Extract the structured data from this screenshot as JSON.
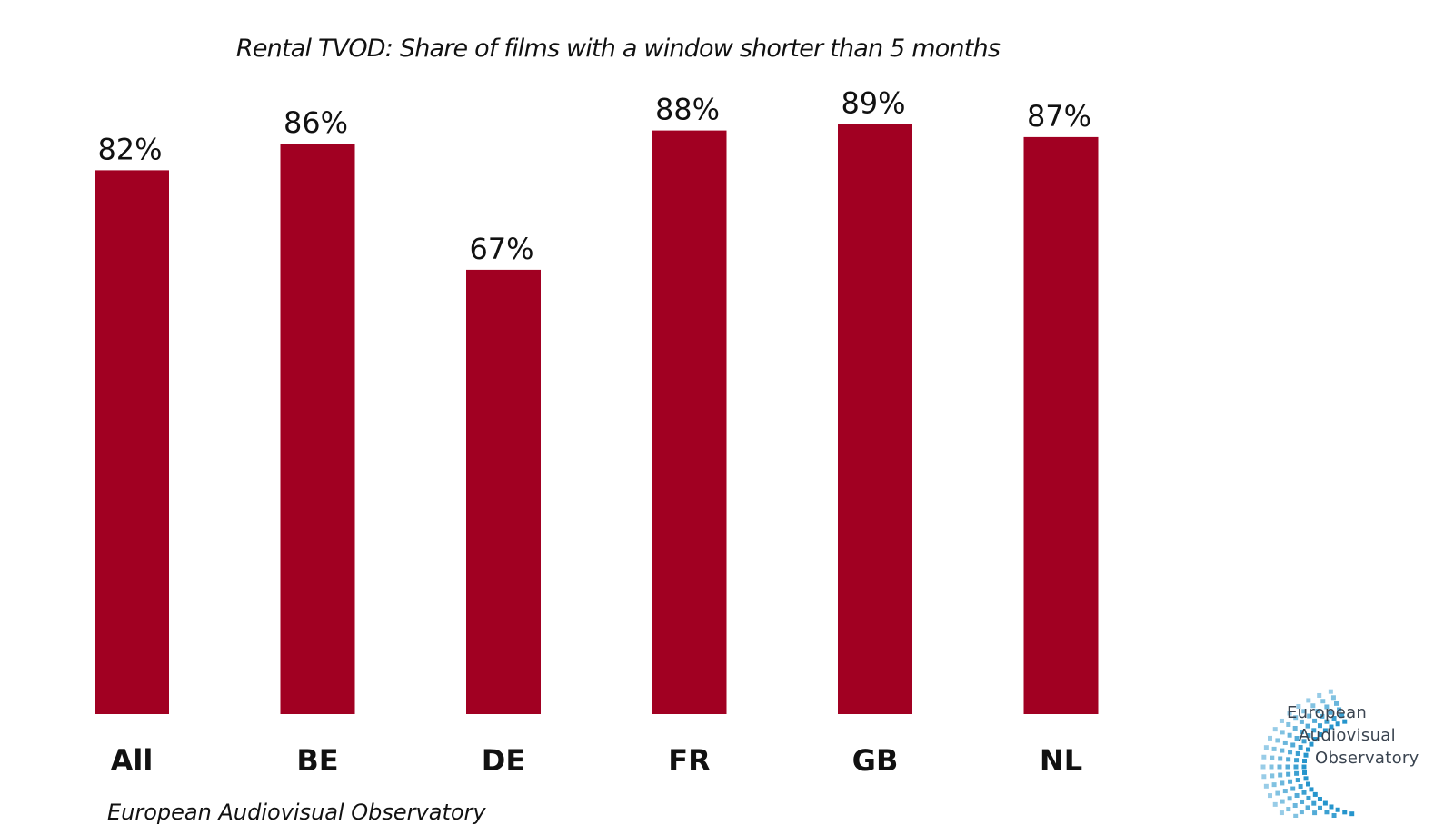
{
  "chart_data": {
    "type": "bar",
    "title": "Rental TVOD: Share of films with a window shorter than 5 months",
    "categories": [
      "All",
      "BE",
      "DE",
      "FR",
      "GB",
      "NL"
    ],
    "values": [
      82,
      86,
      67,
      88,
      89,
      87
    ],
    "value_labels": [
      "82%",
      "86%",
      "67%",
      "88%",
      "89%",
      "87%"
    ],
    "unit": "%",
    "ylim": [
      0,
      100
    ],
    "xlabel": "",
    "ylabel": "",
    "grid": false,
    "legend": "none",
    "bar_color": "#a10022"
  },
  "source": "European Audiovisual Observatory",
  "logo": {
    "line1": "European",
    "line2": "Audiovisual",
    "line3": "Observatory",
    "color": "#1a8fc9"
  }
}
